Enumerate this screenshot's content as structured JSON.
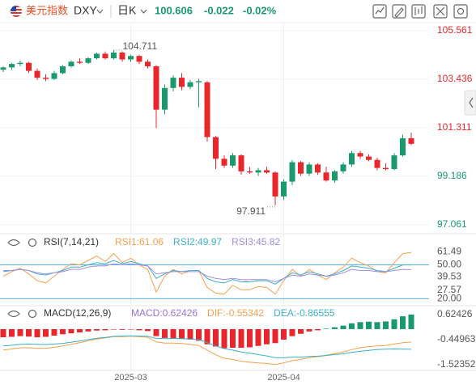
{
  "header": {
    "name": "美元指数",
    "symbol": "DXY",
    "period": "日K",
    "price": 100.606,
    "change": -0.022,
    "change_pct": "-0.02%",
    "name_color": "#e8502a",
    "quote_color": "#1a9a6c"
  },
  "chart_data": [
    {
      "type": "candlestick",
      "up_color": "#1a9a6c",
      "down_color": "#e8262b",
      "categories": [
        null,
        null,
        null,
        null,
        null,
        null,
        null,
        null,
        null,
        null,
        null,
        null,
        null,
        null,
        null,
        "2025-03",
        null,
        null,
        null,
        null,
        null,
        null,
        null,
        null,
        null,
        null,
        null,
        null,
        null,
        null,
        null,
        null,
        null,
        "2025-04",
        null,
        null,
        null,
        null,
        null,
        null,
        null,
        null,
        null,
        null,
        null,
        null,
        null,
        null,
        null
      ],
      "open": [
        103.85,
        103.95,
        104.1,
        104.15,
        103.8,
        103.5,
        103.45,
        103.7,
        104.0,
        104.2,
        104.15,
        104.35,
        104.55,
        104.35,
        104.6,
        104.3,
        104.45,
        104.2,
        104.0,
        102.1,
        103.05,
        103.5,
        103.1,
        103.3,
        103.3,
        100.9,
        99.95,
        99.65,
        100.1,
        99.4,
        99.35,
        99.45,
        99.35,
        98.3,
        98.95,
        99.8,
        99.3,
        99.7,
        99.35,
        99.0,
        99.4,
        99.7,
        100.2,
        100.05,
        99.9,
        99.55,
        99.5,
        100.1,
        100.85
      ],
      "high": [
        104.0,
        104.15,
        104.25,
        104.2,
        103.9,
        103.65,
        103.8,
        104.05,
        104.25,
        104.35,
        104.4,
        104.6,
        104.65,
        104.711,
        104.65,
        104.5,
        104.5,
        104.3,
        104.05,
        103.2,
        103.6,
        103.7,
        103.4,
        103.45,
        103.35,
        100.95,
        100.1,
        100.2,
        100.15,
        99.6,
        99.55,
        99.6,
        99.4,
        99.05,
        99.9,
        99.85,
        99.8,
        99.75,
        99.6,
        99.45,
        99.8,
        100.3,
        100.3,
        100.15,
        100.0,
        99.75,
        100.2,
        101.0,
        101.1
      ],
      "low": [
        103.75,
        103.85,
        104.0,
        103.7,
        103.4,
        103.35,
        103.4,
        103.65,
        103.95,
        104.1,
        104.1,
        104.3,
        104.3,
        104.3,
        104.2,
        104.2,
        104.1,
        103.9,
        101.3,
        101.9,
        102.9,
        102.95,
        103.0,
        102.2,
        100.7,
        99.5,
        99.55,
        99.55,
        99.25,
        99.3,
        99.2,
        99.3,
        97.911,
        98.15,
        98.8,
        99.2,
        99.2,
        99.25,
        98.95,
        98.9,
        99.3,
        99.6,
        99.95,
        99.85,
        99.45,
        99.45,
        99.45,
        100.05,
        100.55
      ],
      "close": [
        103.95,
        104.1,
        104.15,
        103.8,
        103.5,
        103.45,
        103.7,
        104.0,
        104.2,
        104.15,
        104.35,
        104.55,
        104.35,
        104.6,
        104.3,
        104.45,
        104.2,
        104.0,
        102.1,
        103.05,
        103.5,
        103.1,
        103.3,
        103.35,
        100.9,
        99.95,
        99.65,
        100.1,
        99.4,
        99.35,
        99.45,
        99.35,
        98.3,
        98.95,
        99.8,
        99.3,
        99.7,
        99.35,
        99.0,
        99.4,
        99.7,
        100.2,
        100.05,
        99.9,
        99.55,
        99.5,
        100.1,
        100.85,
        100.606
      ],
      "ylim": [
        96.74,
        105.84
      ],
      "yticks": [
        105.561,
        103.436,
        101.311,
        99.186,
        97.061
      ],
      "grid": true,
      "annotations": {
        "max": 104.711,
        "min": 97.911
      }
    },
    {
      "type": "line",
      "title": "RSI(7,14,21)",
      "ylim": [
        16,
        64
      ],
      "yticks": [
        61.49,
        {
          "value": 50,
          "label": "50.00"
        },
        39.53,
        27.57,
        {
          "value": 20,
          "label": "20.00"
        }
      ],
      "reference_lines": [
        50,
        20
      ],
      "reference_color": "#5aaee0",
      "series": [
        {
          "name": "RSI1:61.06",
          "color": "#f5a04a",
          "values": [
            40,
            44,
            47,
            42,
            36,
            34,
            40,
            46,
            51,
            50,
            54,
            58,
            53,
            60,
            52,
            56,
            50,
            46,
            26,
            40,
            46,
            42,
            45,
            45,
            30,
            25,
            24,
            32,
            28,
            28,
            31,
            30,
            24,
            36,
            46,
            40,
            46,
            41,
            37,
            43,
            48,
            56,
            52,
            49,
            44,
            43,
            52,
            60,
            61.06
          ]
        },
        {
          "name": "RSI2:49.97",
          "color": "#3bb0c9",
          "values": [
            44,
            45,
            46,
            45,
            42,
            41,
            43,
            45,
            48,
            48,
            50,
            52,
            51,
            54,
            51,
            53,
            51,
            49,
            38,
            42,
            45,
            44,
            45,
            45,
            38,
            35,
            34,
            37,
            35,
            35,
            36,
            36,
            33,
            38,
            43,
            41,
            44,
            42,
            40,
            42,
            45,
            49,
            48,
            47,
            45,
            44,
            47,
            50,
            49.97
          ]
        },
        {
          "name": "RSI3:45.82",
          "color": "#a08ce0",
          "values": [
            45,
            45,
            46,
            45,
            43,
            42,
            43,
            44,
            46,
            46,
            48,
            49,
            49,
            51,
            50,
            51,
            50,
            49,
            42,
            43,
            44,
            44,
            44,
            44,
            40,
            38,
            37,
            38,
            37,
            37,
            37,
            37,
            35,
            38,
            41,
            40,
            42,
            41,
            40,
            41,
            43,
            46,
            45,
            45,
            44,
            44,
            45,
            46,
            45.82
          ]
        }
      ]
    },
    {
      "type": "macd",
      "title": "MACD(12,26,9)",
      "ylim": [
        -1.7,
        0.9
      ],
      "yticks": [
        0.62426,
        -0.44963,
        -1.52352
      ],
      "series": [
        {
          "name": "MACD:0.62426",
          "color": "#9b6fd6",
          "kind": "bar",
          "up_color": "#1a9a6c",
          "down_color": "#e8262b",
          "values": [
            -0.35,
            -0.33,
            -0.3,
            -0.32,
            -0.35,
            -0.33,
            -0.28,
            -0.22,
            -0.18,
            -0.14,
            -0.1,
            -0.06,
            -0.05,
            -0.02,
            -0.03,
            -0.02,
            -0.05,
            -0.08,
            -0.3,
            -0.38,
            -0.4,
            -0.42,
            -0.45,
            -0.5,
            -0.65,
            -0.75,
            -0.82,
            -0.8,
            -0.8,
            -0.78,
            -0.72,
            -0.65,
            -0.6,
            -0.45,
            -0.3,
            -0.2,
            -0.1,
            -0.05,
            0.02,
            0.08,
            0.15,
            0.25,
            0.3,
            0.32,
            0.3,
            0.33,
            0.42,
            0.55,
            0.62426
          ]
        },
        {
          "name": "DIF:-0.55342",
          "color": "#f5a04a",
          "kind": "line",
          "values": [
            -0.9,
            -0.85,
            -0.8,
            -0.8,
            -0.82,
            -0.82,
            -0.78,
            -0.72,
            -0.65,
            -0.58,
            -0.5,
            -0.42,
            -0.38,
            -0.32,
            -0.32,
            -0.3,
            -0.32,
            -0.35,
            -0.55,
            -0.6,
            -0.6,
            -0.62,
            -0.65,
            -0.7,
            -0.9,
            -1.1,
            -1.25,
            -1.3,
            -1.38,
            -1.42,
            -1.45,
            -1.47,
            -1.52,
            -1.45,
            -1.35,
            -1.3,
            -1.22,
            -1.18,
            -1.12,
            -1.05,
            -0.98,
            -0.88,
            -0.8,
            -0.75,
            -0.72,
            -0.7,
            -0.64,
            -0.58,
            -0.55342
          ]
        },
        {
          "name": "DEA:-0.86555",
          "color": "#3bb0c9",
          "kind": "line",
          "values": [
            -0.72,
            -0.69,
            -0.65,
            -0.64,
            -0.65,
            -0.66,
            -0.64,
            -0.61,
            -0.56,
            -0.51,
            -0.45,
            -0.39,
            -0.36,
            -0.31,
            -0.3,
            -0.29,
            -0.3,
            -0.31,
            -0.4,
            -0.41,
            -0.4,
            -0.41,
            -0.43,
            -0.45,
            -0.58,
            -0.72,
            -0.84,
            -0.9,
            -0.98,
            -1.03,
            -1.09,
            -1.15,
            -1.22,
            -1.23,
            -1.2,
            -1.2,
            -1.17,
            -1.16,
            -1.13,
            -1.09,
            -1.06,
            -1.0,
            -0.95,
            -0.91,
            -0.87,
            -0.86,
            -0.85,
            -0.86,
            -0.86555
          ]
        }
      ]
    }
  ]
}
